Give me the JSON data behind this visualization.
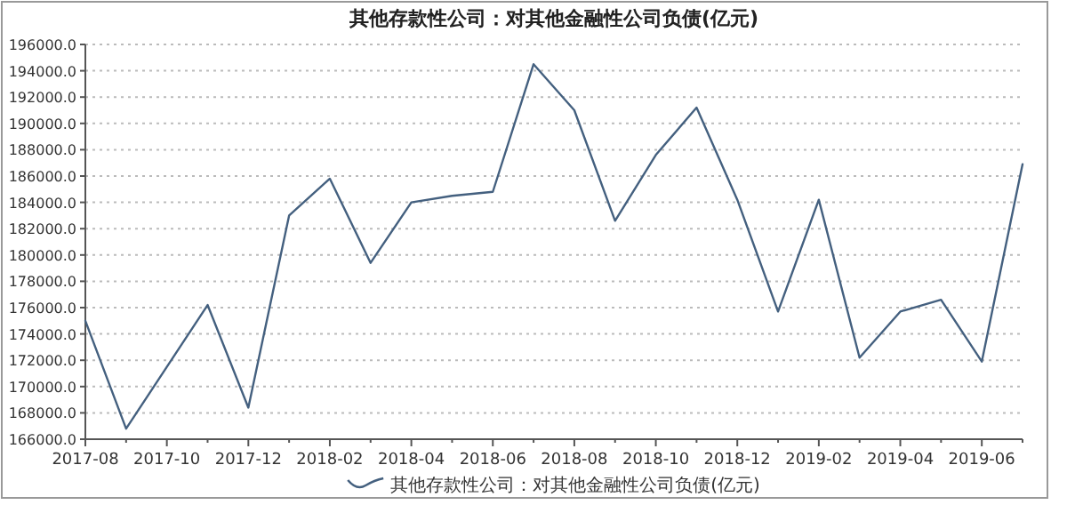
{
  "chart_data": {
    "type": "line",
    "title": "其他存款性公司：对其他金融性公司负债(亿元)",
    "x": [
      "2017-08",
      "2017-09",
      "2017-10",
      "2017-11",
      "2017-12",
      "2018-01",
      "2018-02",
      "2018-03",
      "2018-04",
      "2018-05",
      "2018-06",
      "2018-07",
      "2018-08",
      "2018-09",
      "2018-10",
      "2018-11",
      "2018-12",
      "2019-01",
      "2019-02",
      "2019-03",
      "2019-04",
      "2019-05",
      "2019-06",
      "2019-07"
    ],
    "series": [
      {
        "name": "其他存款性公司：对其他金融性公司负债(亿元)",
        "color": "#44607f",
        "values": [
          175000,
          166800,
          171500,
          176200,
          168400,
          183000,
          185800,
          179400,
          184000,
          184500,
          184800,
          194500,
          191000,
          182600,
          187600,
          191200,
          184200,
          175700,
          184200,
          172200,
          175700,
          176600,
          171900,
          186900
        ]
      }
    ],
    "xlim": [
      "2017-08",
      "2019-07"
    ],
    "xticks": [
      "2017-08",
      {
        "value": "2017-09",
        "label": null
      },
      "2017-10",
      {
        "value": "2017-11",
        "label": null
      },
      "2017-12",
      {
        "value": "2018-01",
        "label": null
      },
      "2018-02",
      {
        "value": "2018-03",
        "label": null
      },
      "2018-04",
      {
        "value": "2018-05",
        "label": null
      },
      "2018-06",
      {
        "value": "2018-07",
        "label": null
      },
      "2018-08",
      {
        "value": "2018-09",
        "label": null
      },
      "2018-10",
      {
        "value": "2018-11",
        "label": null
      },
      "2018-12",
      {
        "value": "2019-01",
        "label": null
      },
      "2019-02",
      {
        "value": "2019-03",
        "label": null
      },
      "2019-04",
      {
        "value": "2019-05",
        "label": null
      },
      "2019-06",
      {
        "value": "2019-07",
        "label": null
      }
    ],
    "ylim": [
      166000,
      196000
    ],
    "yticks": [
      {
        "value": 166000,
        "label": "166000.0"
      },
      {
        "value": 168000,
        "label": "168000.0"
      },
      {
        "value": 170000,
        "label": "170000.0"
      },
      {
        "value": 172000,
        "label": "172000.0"
      },
      {
        "value": 174000,
        "label": "174000.0"
      },
      {
        "value": 176000,
        "label": "176000.0"
      },
      {
        "value": 178000,
        "label": "178000.0"
      },
      {
        "value": 180000,
        "label": "180000.0"
      },
      {
        "value": 182000,
        "label": "182000.0"
      },
      {
        "value": 184000,
        "label": "184000.0"
      },
      {
        "value": 186000,
        "label": "186000.0"
      },
      {
        "value": 188000,
        "label": "188000.0"
      },
      {
        "value": 190000,
        "label": "190000.0"
      },
      {
        "value": 192000,
        "label": "192000.0"
      },
      {
        "value": 194000,
        "label": "194000.0"
      },
      {
        "value": 196000,
        "label": "196000.0"
      }
    ],
    "grid": "y",
    "legend": "bottom",
    "marker": "none",
    "line_style": "solid"
  }
}
